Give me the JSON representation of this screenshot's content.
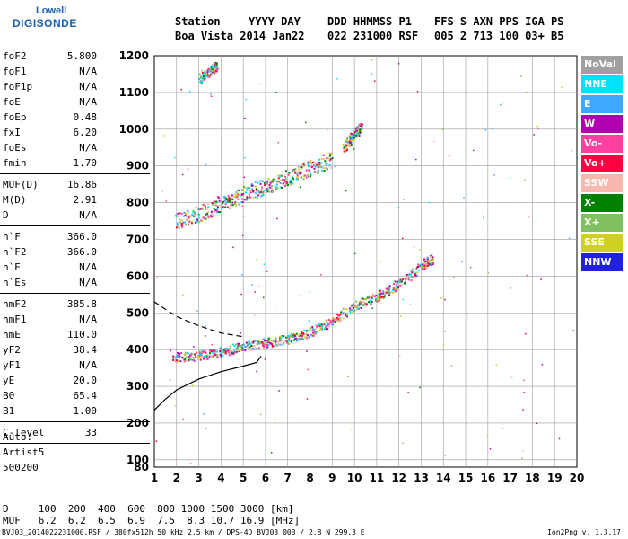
{
  "logo": {
    "line1": "Lowell",
    "line2": "DIGISONDE"
  },
  "header": {
    "labels": [
      {
        "text": "Station",
        "x": 0
      },
      {
        "text": "YYYY DAY",
        "x": 82
      },
      {
        "text": "DDD HHMMSS P1",
        "x": 170
      },
      {
        "text": "FFS S AXN PPS IGA PS",
        "x": 289
      }
    ],
    "values": [
      {
        "text": "Boa Vista 2014 Jan22",
        "x": 0
      },
      {
        "text": "022 231000 RSF",
        "x": 170
      },
      {
        "text": "005 2 713 100 03+ B5",
        "x": 289
      }
    ]
  },
  "params_groups": [
    [
      {
        "k": "foF2",
        "v": "5.800"
      },
      {
        "k": "foF1",
        "v": "N/A"
      },
      {
        "k": "foF1p",
        "v": "N/A"
      },
      {
        "k": "foE",
        "v": "N/A"
      },
      {
        "k": "foEp",
        "v": "0.48"
      },
      {
        "k": "fxI",
        "v": "6.20"
      },
      {
        "k": "foEs",
        "v": "N/A"
      },
      {
        "k": "fmin",
        "v": "1.70"
      }
    ],
    [
      {
        "k": "MUF(D)",
        "v": "16.86"
      },
      {
        "k": "M(D)",
        "v": "2.91"
      },
      {
        "k": "D",
        "v": "N/A"
      }
    ],
    [
      {
        "k": "h`F",
        "v": "366.0"
      },
      {
        "k": "h`F2",
        "v": "366.0"
      },
      {
        "k": "h`E",
        "v": "N/A"
      },
      {
        "k": "h`Es",
        "v": "N/A"
      }
    ],
    [
      {
        "k": "hmF2",
        "v": "385.8"
      },
      {
        "k": "hmF1",
        "v": "N/A"
      },
      {
        "k": "hmE",
        "v": "110.0"
      },
      {
        "k": "yF2",
        "v": "38.4"
      },
      {
        "k": "yF1",
        "v": "N/A"
      },
      {
        "k": "yE",
        "v": "20.0"
      },
      {
        "k": "B0",
        "v": "65.4"
      },
      {
        "k": "B1",
        "v": "1.00"
      }
    ],
    [
      {
        "k": "C-level",
        "v": "33"
      }
    ]
  ],
  "auto": {
    "line1": "Auto:",
    "line2": "Artist5",
    "line3": "500200"
  },
  "legend": [
    {
      "label": "NoVal",
      "color": "#a0a0a0"
    },
    {
      "label": "NNE",
      "color": "#00e0ff"
    },
    {
      "label": "E",
      "color": "#40a8ff"
    },
    {
      "label": "W",
      "color": "#b000b0"
    },
    {
      "label": "Vo-",
      "color": "#ff40a0"
    },
    {
      "label": "Vo+",
      "color": "#ff0040"
    },
    {
      "label": "SSW",
      "color": "#f8b8b0"
    },
    {
      "label": "X-",
      "color": "#008000"
    },
    {
      "label": "X+",
      "color": "#80c060"
    },
    {
      "label": "SSE",
      "color": "#d0d020"
    },
    {
      "label": "NNW",
      "color": "#2020e0"
    }
  ],
  "chart_data": {
    "type": "scatter",
    "title": "",
    "xlabel": "",
    "ylabel": "",
    "xlim": [
      1,
      20
    ],
    "ylim": [
      80,
      1200
    ],
    "x_ticks": [
      1,
      2,
      3,
      4,
      5,
      6,
      7,
      8,
      9,
      10,
      11,
      12,
      13,
      14,
      15,
      16,
      17,
      18,
      19,
      20
    ],
    "y_ticks": [
      80,
      100,
      200,
      300,
      400,
      500,
      600,
      700,
      800,
      900,
      1000,
      1100,
      1200
    ],
    "grid": true,
    "traces": [
      {
        "name": "F2 low",
        "points": [
          [
            1.8,
            380
          ],
          [
            3,
            385
          ],
          [
            4,
            395
          ],
          [
            5,
            410
          ],
          [
            6,
            420
          ],
          [
            7,
            430
          ],
          [
            8,
            450
          ],
          [
            9,
            480
          ],
          [
            10,
            520
          ],
          [
            11,
            545
          ],
          [
            12,
            580
          ],
          [
            13,
            630
          ],
          [
            13.5,
            650
          ]
        ]
      },
      {
        "name": "F2 multi-hop",
        "points": [
          [
            1.9,
            750
          ],
          [
            3,
            770
          ],
          [
            4,
            800
          ],
          [
            5,
            825
          ],
          [
            6,
            845
          ],
          [
            7,
            870
          ],
          [
            8,
            895
          ],
          [
            9,
            920
          ]
        ]
      },
      {
        "name": "F2 upper tail",
        "points": [
          [
            9.5,
            950
          ],
          [
            10,
            990
          ],
          [
            10.3,
            1010
          ]
        ]
      },
      {
        "name": "top cluster",
        "points": [
          [
            3,
            1140
          ],
          [
            3.5,
            1160
          ],
          [
            3.8,
            1175
          ]
        ]
      }
    ],
    "profile_solid": [
      [
        1,
        235
      ],
      [
        1.5,
        265
      ],
      [
        2,
        290
      ],
      [
        3,
        320
      ],
      [
        4,
        340
      ],
      [
        5,
        355
      ],
      [
        5.6,
        365
      ],
      [
        5.8,
        382
      ]
    ],
    "profile_dashed": [
      [
        1,
        530
      ],
      [
        1.5,
        510
      ],
      [
        2,
        490
      ],
      [
        3,
        465
      ],
      [
        4,
        445
      ],
      [
        5,
        435
      ]
    ],
    "muf_table": {
      "D_km": [
        "100",
        "200",
        "400",
        "600",
        "800",
        "1000",
        "1500",
        "3000"
      ],
      "MUF_MHz": [
        "6.2",
        "6.2",
        "6.5",
        "6.9",
        "7.5",
        "8.3",
        "10.7",
        "16.9"
      ],
      "D_label": "D",
      "MUF_label": "MUF",
      "D_unit": "[km]",
      "MUF_unit": "[MHz]"
    }
  },
  "footer": {
    "left": "BVJ03_2014022231000.RSF / 380fx512h 50 kHz 2.5 km / DPS-4D BVJ03 003 / 2.8 N 299.3 E",
    "right": "Ion2Png v. 1.3.17"
  }
}
